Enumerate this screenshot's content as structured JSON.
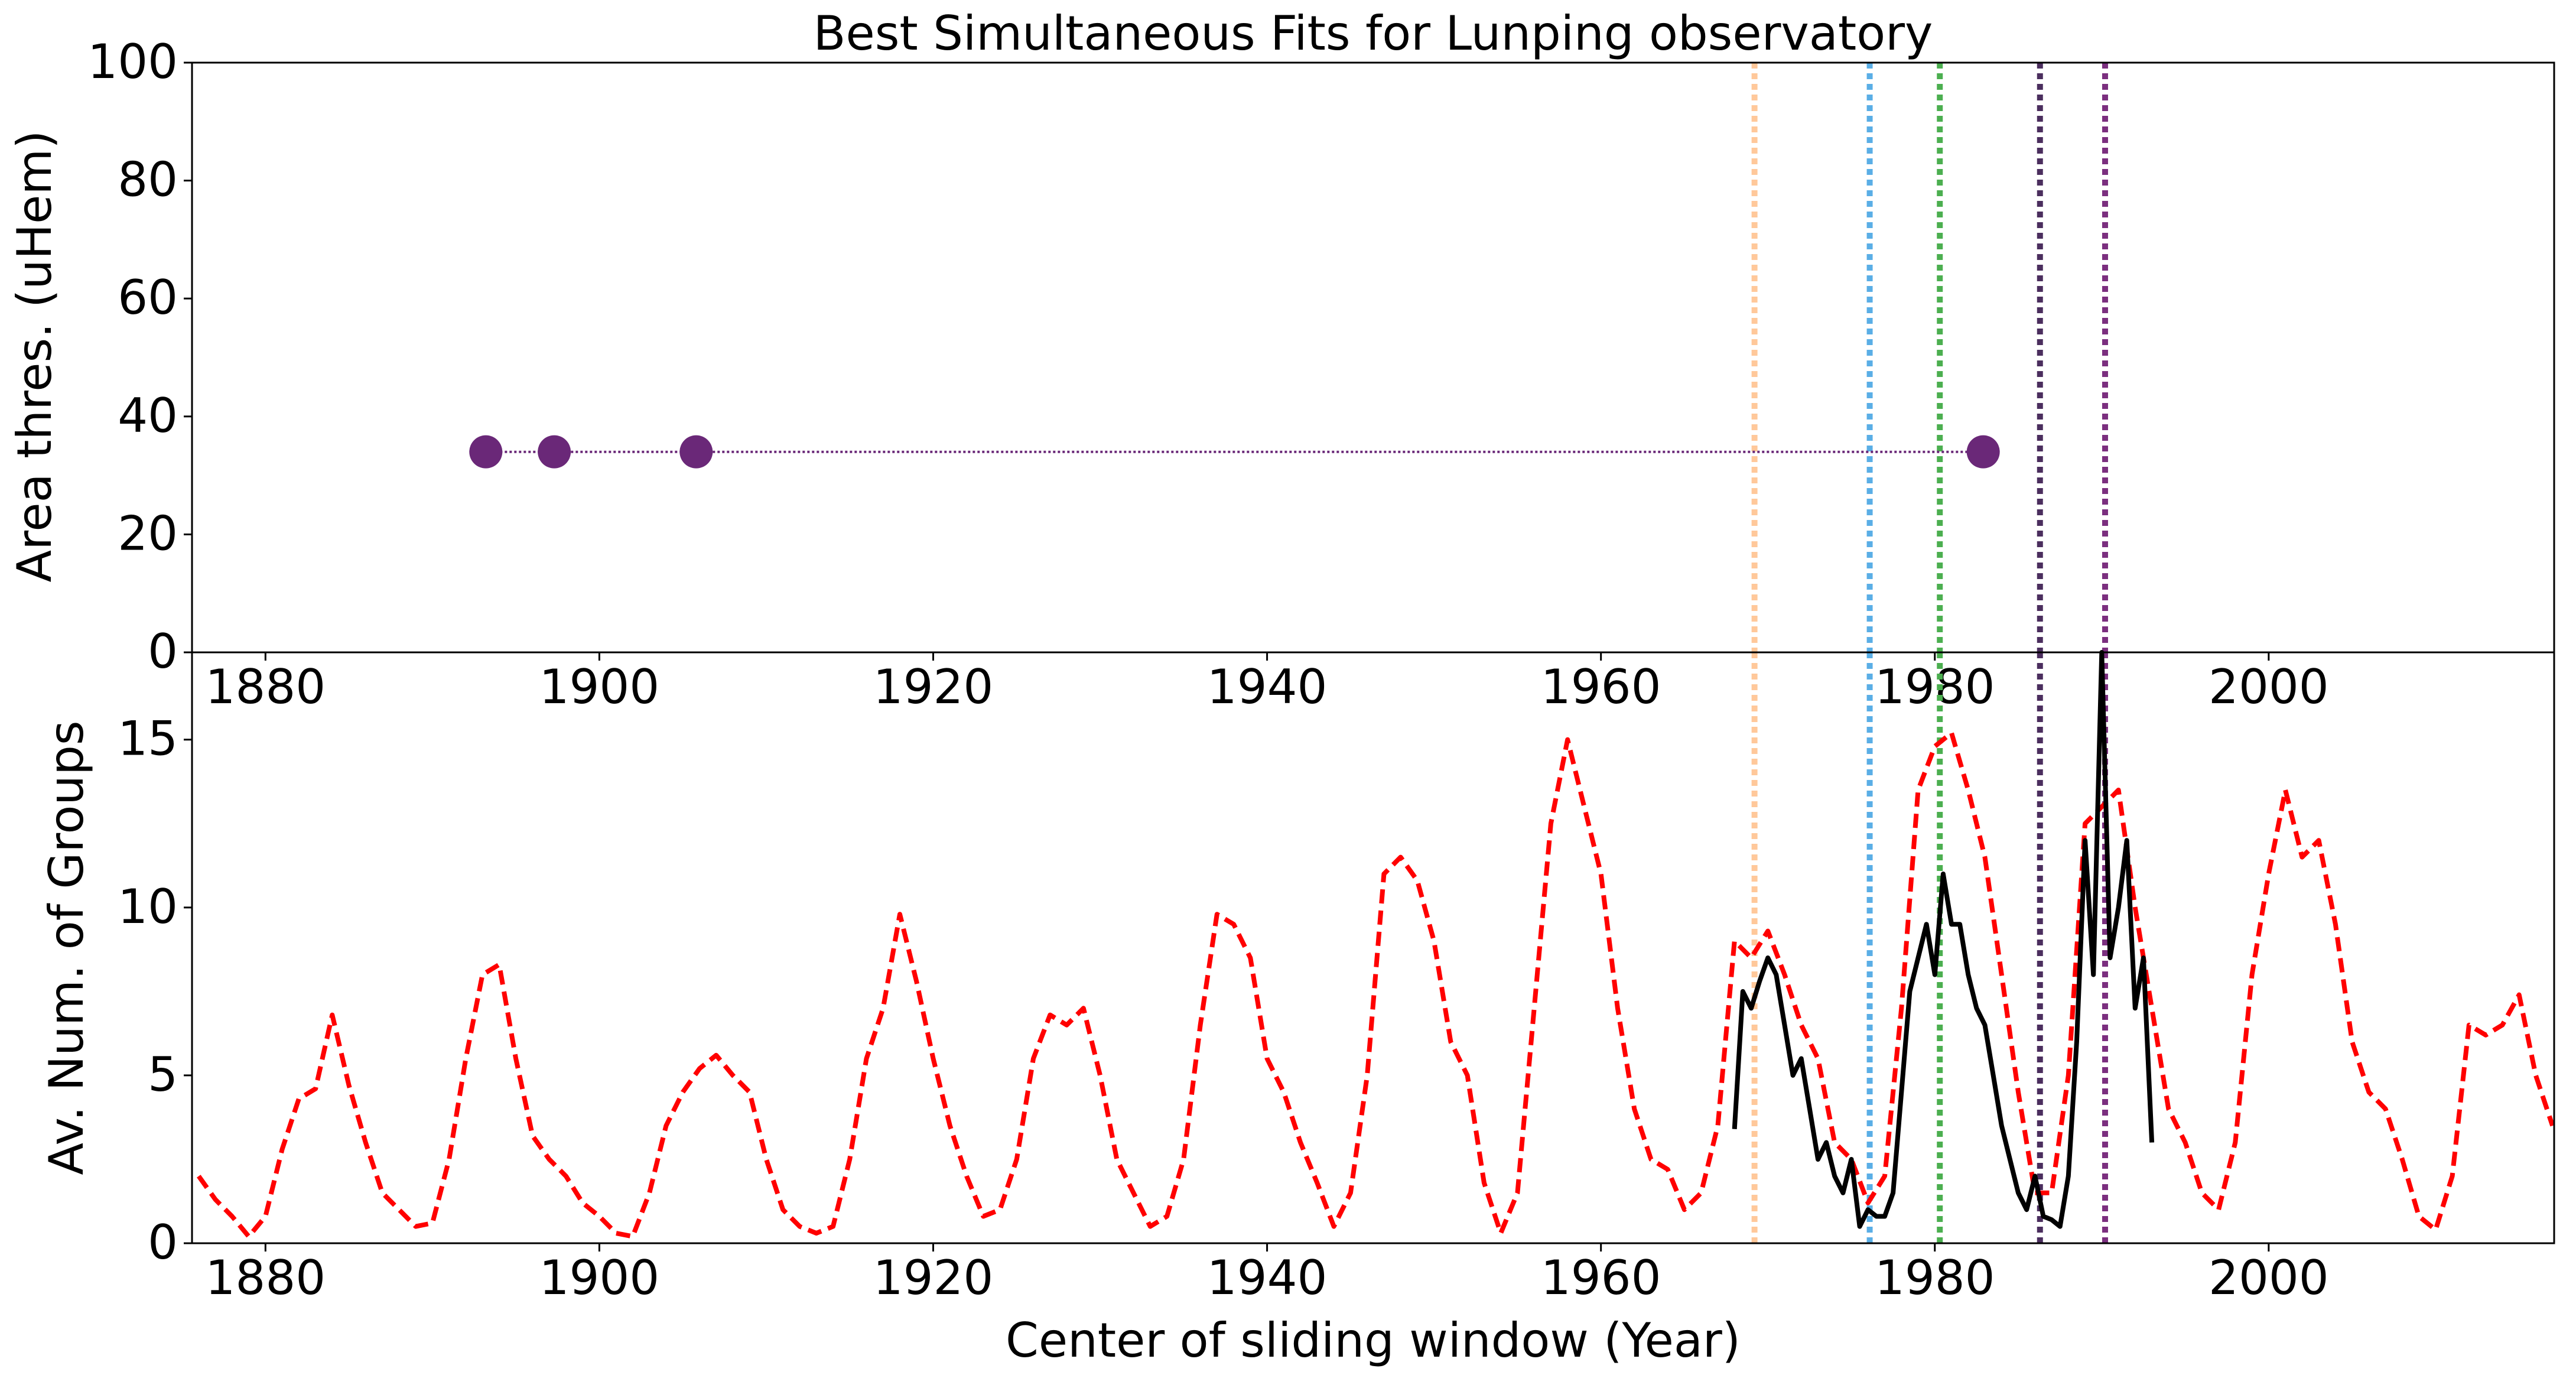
{
  "chart_data": [
    {
      "type": "scatter",
      "title": "Best Simultaneous Fits for Lunping observatory",
      "y_label": "Area thres. (uHem)",
      "x": [
        1893.2,
        1897.3,
        1905.8,
        1982.9
      ],
      "values": [
        34,
        34,
        34,
        34
      ],
      "color": "#6a2878",
      "connect": "dotted",
      "xlim": [
        1875.6,
        2017.1
      ],
      "xticks": [
        1880,
        1900,
        1920,
        1940,
        1960,
        1980,
        2000
      ],
      "ylim": [
        0,
        100
      ],
      "yticks": [
        0,
        20,
        40,
        60,
        80,
        100
      ],
      "vlines": {
        "x": [
          1969.2,
          1976.1,
          1980.3,
          1986.3,
          1990.2
        ],
        "colors": [
          "#ffc89a",
          "#5aaee6",
          "#4caf50",
          "#4b2e5e",
          "#7b2f7f"
        ]
      }
    },
    {
      "type": "line",
      "x_label": "Center of sliding window (Year)",
      "y_label": "Av. Num. of Groups",
      "xlim": [
        1875.6,
        2017.1
      ],
      "xticks": [
        1880,
        1900,
        1920,
        1940,
        1960,
        1980,
        2000
      ],
      "ylim": [
        0,
        17.6
      ],
      "yticks": [
        0,
        5,
        10,
        15
      ],
      "vlines": {
        "x": [
          1969.2,
          1976.1,
          1980.3,
          1986.3,
          1990.2
        ],
        "colors": [
          "#ffc89a",
          "#5aaee6",
          "#4caf50",
          "#4b2e5e",
          "#7b2f7f"
        ]
      },
      "series": [
        {
          "color": "#ff0000",
          "style": "dashed",
          "x": [
            1876,
            1877,
            1878,
            1879,
            1880,
            1881,
            1882,
            1883,
            1884,
            1885,
            1886,
            1887,
            1888,
            1889,
            1890,
            1891,
            1892,
            1893,
            1894,
            1895,
            1896,
            1897,
            1898,
            1899,
            1900,
            1901,
            1902,
            1903,
            1904,
            1905,
            1906,
            1907,
            1908,
            1909,
            1910,
            1911,
            1912,
            1913,
            1914,
            1915,
            1916,
            1917,
            1918,
            1919,
            1920,
            1921,
            1922,
            1923,
            1924,
            1925,
            1926,
            1927,
            1928,
            1929,
            1930,
            1931,
            1932,
            1933,
            1934,
            1935,
            1936,
            1937,
            1938,
            1939,
            1940,
            1941,
            1942,
            1943,
            1944,
            1945,
            1946,
            1947,
            1948,
            1949,
            1950,
            1951,
            1952,
            1953,
            1954,
            1955,
            1956,
            1957,
            1958,
            1959,
            1960,
            1961,
            1962,
            1963,
            1964,
            1965,
            1966,
            1967,
            1968,
            1969,
            1970,
            1971,
            1972,
            1973,
            1974,
            1975,
            1976,
            1977,
            1978,
            1979,
            1980,
            1981,
            1982,
            1983,
            1984,
            1985,
            1986,
            1987,
            1988,
            1989,
            1990,
            1991,
            1992,
            1993,
            1994,
            1995,
            1996,
            1997,
            1998,
            1999,
            2000,
            2001,
            2002,
            2003,
            2004,
            2005,
            2006,
            2007,
            2008,
            2009,
            2010,
            2011,
            2012,
            2013,
            2014,
            2015,
            2016,
            2017
          ],
          "values": [
            2.0,
            1.3,
            0.8,
            0.2,
            0.8,
            2.8,
            4.3,
            4.6,
            6.8,
            4.7,
            3.0,
            1.5,
            1.0,
            0.5,
            0.6,
            2.5,
            5.5,
            8.0,
            8.3,
            5.5,
            3.2,
            2.5,
            2.0,
            1.2,
            0.8,
            0.3,
            0.2,
            1.5,
            3.5,
            4.5,
            5.2,
            5.6,
            5.0,
            4.5,
            2.5,
            1.0,
            0.5,
            0.3,
            0.5,
            2.5,
            5.5,
            7.0,
            9.8,
            7.8,
            5.5,
            3.5,
            2.0,
            0.8,
            1.0,
            2.5,
            5.5,
            6.8,
            6.5,
            7.0,
            5.0,
            2.5,
            1.5,
            0.5,
            0.8,
            2.5,
            6.5,
            9.8,
            9.5,
            8.5,
            5.5,
            4.5,
            3.0,
            1.8,
            0.5,
            1.5,
            5.0,
            11.0,
            11.5,
            10.8,
            9.0,
            6.0,
            5.0,
            1.8,
            0.3,
            1.5,
            7.0,
            12.5,
            15.0,
            13.0,
            11.0,
            7.0,
            4.0,
            2.5,
            2.2,
            1.0,
            1.5,
            3.5,
            9.0,
            8.5,
            9.3,
            8.0,
            6.5,
            5.5,
            3.0,
            2.5,
            1.2,
            2.0,
            7.0,
            13.5,
            14.8,
            15.2,
            13.5,
            11.5,
            8.0,
            4.5,
            1.5,
            1.5,
            5.0,
            12.5,
            13.0,
            13.5,
            10.0,
            7.0,
            4.0,
            3.0,
            1.5,
            1.0,
            3.0,
            8.0,
            11.0,
            13.5,
            11.5,
            12.0,
            9.5,
            6.0,
            4.5,
            4.0,
            2.5,
            0.8,
            0.4,
            2.0,
            6.5,
            6.2,
            6.5,
            7.4,
            5.0,
            3.5
          ]
        },
        {
          "color": "#000000",
          "style": "solid",
          "x": [
            1968,
            1968.5,
            1969,
            1969.5,
            1970,
            1970.5,
            1971,
            1971.5,
            1972,
            1972.5,
            1973,
            1973.5,
            1974,
            1974.5,
            1975,
            1975.5,
            1976,
            1976.5,
            1977,
            1977.5,
            1978,
            1978.5,
            1979,
            1979.5,
            1980,
            1980.5,
            1981,
            1981.5,
            1982,
            1982.5,
            1983,
            1983.5,
            1984,
            1984.5,
            1985,
            1985.5,
            1986,
            1986.5,
            1987,
            1987.5,
            1988,
            1988.5,
            1989,
            1989.5,
            1990,
            1990.5,
            1991,
            1991.5,
            1992,
            1992.5,
            1993
          ],
          "values": [
            3.4,
            7.5,
            7.0,
            7.8,
            8.5,
            8.0,
            6.5,
            5.0,
            5.5,
            4.0,
            2.5,
            3.0,
            2.0,
            1.5,
            2.5,
            0.5,
            1.0,
            0.8,
            0.8,
            1.5,
            4.5,
            7.5,
            8.5,
            9.5,
            8.0,
            11.0,
            9.5,
            9.5,
            8.0,
            7.0,
            6.5,
            5.0,
            3.5,
            2.5,
            1.5,
            1.0,
            2.0,
            0.8,
            0.7,
            0.5,
            2.0,
            6.0,
            12.0,
            8.0,
            17.6,
            8.5,
            10.0,
            12.0,
            7.0,
            8.5,
            3.0
          ]
        }
      ]
    }
  ]
}
